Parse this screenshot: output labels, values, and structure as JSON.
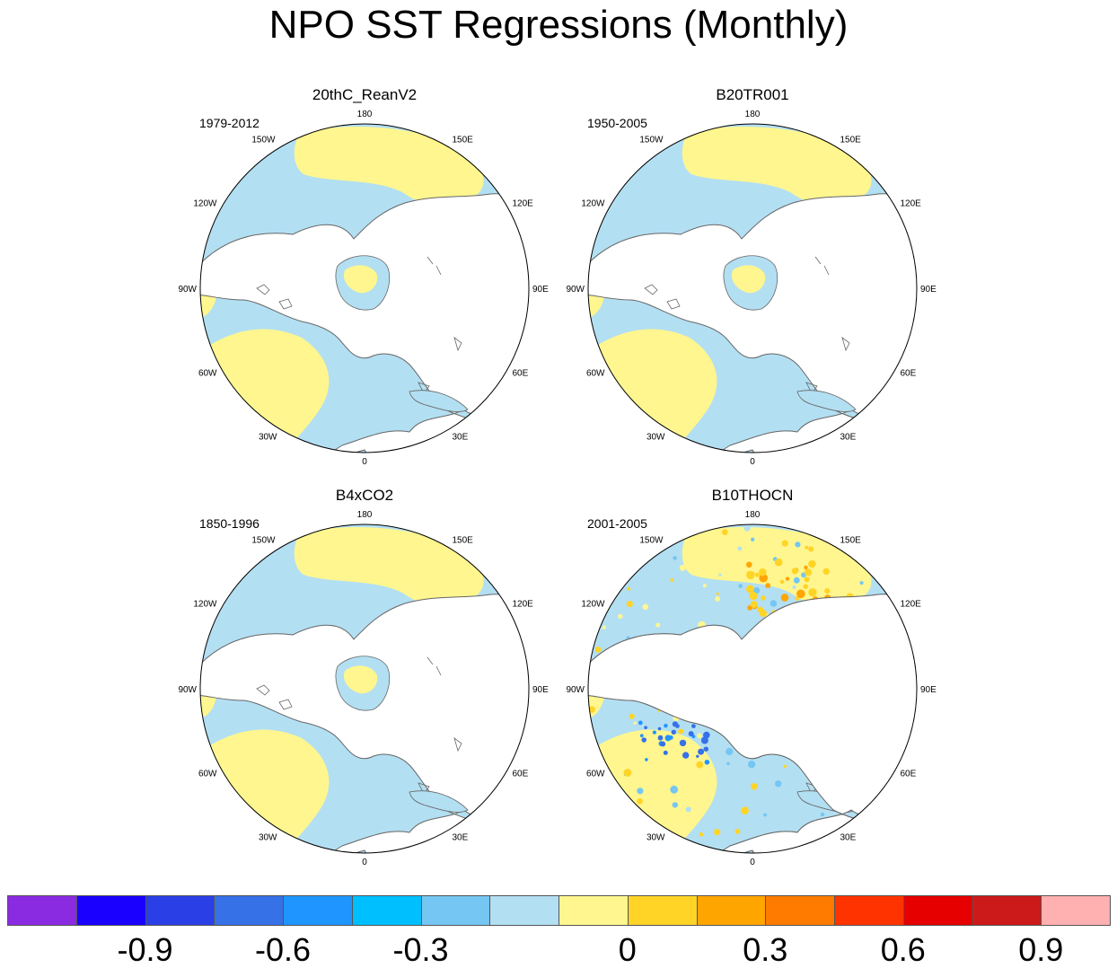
{
  "figure": {
    "title": "NPO SST Regressions (Monthly)"
  },
  "map_labels": {
    "top": "180",
    "bottom": "0",
    "left": "90W",
    "right": "90E",
    "upper_left_1": "150W",
    "upper_left_2": "120W",
    "lower_left_1": "60W",
    "lower_left_2": "30W",
    "upper_right_1": "150E",
    "upper_right_2": "120E",
    "lower_right_1": "60E",
    "lower_right_2": "30E"
  },
  "panels": [
    {
      "name": "20thC_ReanV2",
      "years": "1979-2012",
      "pattern": "smooth"
    },
    {
      "name": "B20TR001",
      "years": "1950-2005",
      "pattern": "smooth"
    },
    {
      "name": "B4xCO2",
      "years": "1850-1996",
      "pattern": "smooth"
    },
    {
      "name": "B10THOCN",
      "years": "2001-2005",
      "pattern": "noisy"
    }
  ],
  "colorbar": {
    "colors": [
      "#8a2be2",
      "#1a00ff",
      "#2b3fe6",
      "#3671e8",
      "#1e95ff",
      "#00bfff",
      "#75c6f2",
      "#b3dff2",
      "#fff68f",
      "#ffd426",
      "#ffa500",
      "#ff7b00",
      "#ff3300",
      "#e60000",
      "#cc1a1a",
      "#ffb0b0"
    ],
    "labels": [
      "-0.9",
      "-0.6",
      "-0.3",
      "0",
      "0.3",
      "0.6",
      "0.9"
    ],
    "label_boundaries": [
      1,
      3,
      5,
      8,
      10,
      12,
      14
    ]
  },
  "colors": {
    "positive_weak": "#fff68f",
    "negative_weak": "#b3dff2",
    "land": "#ffffff",
    "coast": "#666666"
  }
}
